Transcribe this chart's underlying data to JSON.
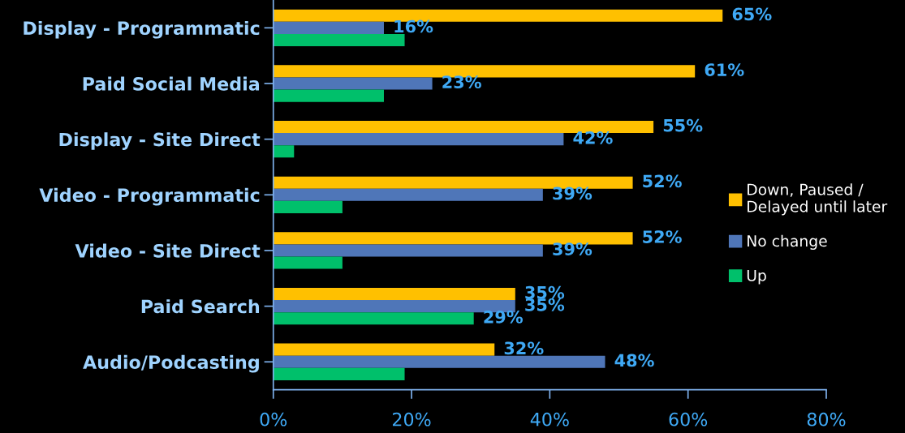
{
  "chart_data": {
    "type": "bar",
    "orientation": "horizontal",
    "categories": [
      "Display - Programmatic",
      "Paid Social Media",
      "Display - Site Direct",
      "Video - Programmatic",
      "Video - Site Direct",
      "Paid Search",
      "Audio/Podcasting"
    ],
    "series": [
      {
        "name": "Down, Paused /\nDelayed until later",
        "color": "#ffc000",
        "values": [
          65,
          61,
          55,
          52,
          52,
          35,
          32
        ],
        "value_labels": [
          "65%",
          "61%",
          "55%",
          "52%",
          "52%",
          "35%",
          "32%"
        ]
      },
      {
        "name": "No change",
        "color": "#4f76b8",
        "values": [
          16,
          23,
          42,
          39,
          39,
          35,
          48
        ],
        "value_labels": [
          "16%",
          "23%",
          "42%",
          "39%",
          "39%",
          "35%",
          "48%"
        ]
      },
      {
        "name": "Up",
        "color": "#00c06b",
        "values": [
          19,
          16,
          3,
          10,
          10,
          29,
          19
        ],
        "value_labels": [
          null,
          null,
          null,
          null,
          null,
          "29%",
          null
        ]
      }
    ],
    "xlim": [
      0,
      80
    ],
    "xticks": [
      {
        "value": 0,
        "label": "0%"
      },
      {
        "value": 20,
        "label": "20%"
      },
      {
        "value": 40,
        "label": "40%"
      },
      {
        "value": 60,
        "label": "60%"
      },
      {
        "value": 80,
        "label": "80%"
      }
    ],
    "grid": false,
    "legend": "right"
  }
}
